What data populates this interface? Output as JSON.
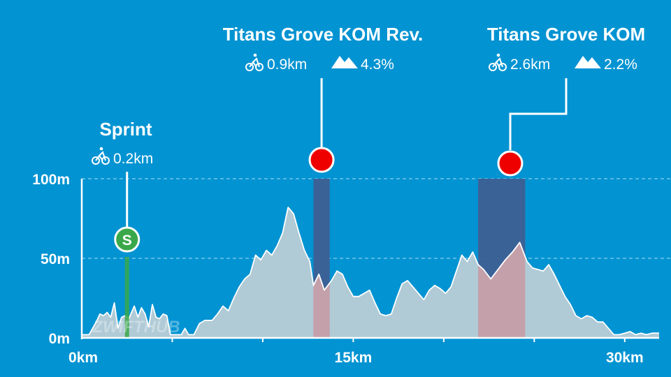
{
  "chart_data": {
    "type": "area",
    "title": "",
    "xlabel": "",
    "ylabel": "",
    "xlim": [
      0,
      31.9
    ],
    "ylim": [
      0,
      100
    ],
    "grid": "dashed horizontal at 50m and 100m",
    "watermark": "ZWIFTHUB",
    "x_ticks": [
      {
        "value": 0,
        "label": "0km"
      },
      {
        "value": 15,
        "label": "15km"
      },
      {
        "value": 30,
        "label": "30km"
      }
    ],
    "y_ticks": [
      {
        "value": 0,
        "label": "0m"
      },
      {
        "value": 50,
        "label": "50m"
      },
      {
        "value": 100,
        "label": "100m"
      }
    ],
    "profile": {
      "x": [
        0,
        0.4,
        0.8,
        1.0,
        1.2,
        1.4,
        1.6,
        1.8,
        2.0,
        2.2,
        2.4,
        2.6,
        2.9,
        3.1,
        3.3,
        3.5,
        3.7,
        3.9,
        4.1,
        4.3,
        4.5,
        4.7,
        4.9,
        5.1,
        5.3,
        5.5,
        5.7,
        5.9,
        6.2,
        6.5,
        6.8,
        7.2,
        7.5,
        7.8,
        8.1,
        8.4,
        8.7,
        9.0,
        9.3,
        9.6,
        9.9,
        10.2,
        10.5,
        10.8,
        11.1,
        11.4,
        11.7,
        12.0,
        12.3,
        12.6,
        12.8,
        13.1,
        13.4,
        13.8,
        14.1,
        14.4,
        14.7,
        15.0,
        15.3,
        15.6,
        15.9,
        16.2,
        16.5,
        16.8,
        17.1,
        17.4,
        17.7,
        18.0,
        18.3,
        18.6,
        18.9,
        19.2,
        19.5,
        19.8,
        20.1,
        20.4,
        20.7,
        21.0,
        21.3,
        21.6,
        21.9,
        22.2,
        22.6,
        23.0,
        23.4,
        23.8,
        24.2,
        24.6,
        24.9,
        25.2,
        25.5,
        25.8,
        26.1,
        26.4,
        26.7,
        27.0,
        27.3,
        27.6,
        27.9,
        28.2,
        28.5,
        28.8,
        29.1,
        29.4,
        29.7,
        30.0,
        30.3,
        30.6,
        30.9,
        31.2,
        31.5,
        31.9
      ],
      "y": [
        2,
        2,
        10,
        15,
        14,
        16,
        13,
        22,
        6,
        13,
        14,
        12,
        20,
        13,
        19,
        15,
        7,
        21,
        13,
        12,
        15,
        14,
        2,
        2,
        2,
        2,
        6,
        2,
        2,
        9,
        11,
        11,
        15,
        20,
        17,
        25,
        32,
        37,
        40,
        52,
        49,
        55,
        52,
        58,
        66,
        82,
        78,
        66,
        55,
        48,
        33,
        40,
        30,
        36,
        42,
        40,
        32,
        26,
        26,
        28,
        30,
        22,
        15,
        14,
        15,
        25,
        34,
        36,
        32,
        28,
        24,
        30,
        33,
        31,
        28,
        32,
        42,
        52,
        48,
        54,
        46,
        43,
        37,
        43,
        49,
        54,
        60,
        48,
        44,
        43,
        42,
        46,
        40,
        33,
        26,
        21,
        14,
        12,
        14,
        13,
        10,
        10,
        6,
        2,
        2,
        3,
        4,
        2,
        3,
        2,
        3,
        3
      ]
    },
    "segments": [
      {
        "type": "sprint",
        "name": "Sprint",
        "distance": "0.2km",
        "badge": "S",
        "start_km": 2.4,
        "end_km": 2.6,
        "color": "#3aa84a"
      },
      {
        "type": "kom",
        "name": "Titans Grove KOM Rev.",
        "distance": "0.9km",
        "gradient": "4.3%",
        "start_km": 12.8,
        "end_km": 13.7,
        "color": "#ee0000"
      },
      {
        "type": "kom",
        "name": "Titans Grove KOM",
        "distance": "2.6km",
        "gradient": "2.2%",
        "start_km": 21.9,
        "end_km": 24.5,
        "color": "#ee0000"
      }
    ],
    "colors": {
      "background": "#0293d2",
      "profile_fill": "#b0cad6",
      "climb_fill": "#c4a0ab",
      "climb_highlight": "#3d5f93",
      "axis": "#ffffff"
    },
    "icons": {
      "distance": "bicycle-icon",
      "gradient": "mountain-icon"
    }
  }
}
